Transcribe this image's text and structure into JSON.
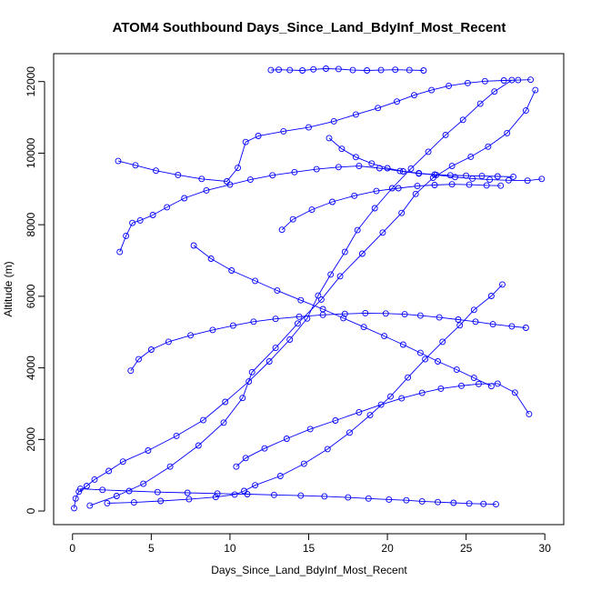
{
  "chart_data": {
    "type": "line",
    "title": "ATOM4 Southbound Days_Since_Land_BdyInf_Most_Recent",
    "xlabel": "Days_Since_Land_BdyInf_Most_Recent",
    "ylabel": "Altitude (m)",
    "xlim": [
      -1.2,
      31.2
    ],
    "ylim": [
      -380,
      12780
    ],
    "x_ticks": [
      0,
      5,
      10,
      15,
      20,
      25,
      30
    ],
    "y_ticks": [
      0,
      2000,
      4000,
      6000,
      8000,
      10000,
      12000
    ],
    "x_tick_labels": [
      "0",
      "5",
      "10",
      "15",
      "20",
      "25",
      "30"
    ],
    "y_tick_labels": [
      "0",
      "2000",
      "4000",
      "6000",
      "8000",
      "10000",
      "12000"
    ],
    "grid": false,
    "legend": "none",
    "series_color": "#0000ff",
    "series": [
      {
        "x": [
          0.1,
          0.2,
          0.4,
          0.9,
          1.4,
          2.3,
          3.2,
          4.8,
          6.6,
          8.3,
          9.7,
          11.2,
          12.5,
          13.8,
          14.9,
          15.6,
          16.4,
          17.3,
          18.1,
          19.2,
          20.3,
          21.5,
          22.6,
          23.7,
          24.8,
          25.9,
          26.8,
          27.9
        ],
        "y": [
          80,
          350,
          540,
          700,
          880,
          1120,
          1380,
          1690,
          2100,
          2540,
          3050,
          3620,
          4180,
          4790,
          5380,
          6020,
          6610,
          7240,
          7850,
          8460,
          9020,
          9570,
          10040,
          10510,
          10930,
          11380,
          11720,
          12040
        ]
      },
      {
        "x": [
          1.1,
          2.8,
          4.5,
          6.2,
          8.0,
          9.6,
          10.8,
          11.4,
          12.9,
          14.3,
          15.8,
          17.0,
          18.4,
          19.7,
          20.9,
          21.8,
          22.9,
          24.1,
          25.3,
          26.4,
          27.6,
          28.8,
          29.4
        ],
        "y": [
          150,
          420,
          760,
          1240,
          1830,
          2470,
          3160,
          3880,
          4560,
          5240,
          5910,
          6560,
          7190,
          7780,
          8330,
          8860,
          9310,
          9640,
          9900,
          10180,
          10560,
          11190,
          11760
        ]
      },
      {
        "x": [
          2.2,
          3.9,
          5.6,
          7.4,
          9.1,
          10.3,
          10.9,
          11.6,
          13.2,
          14.7,
          16.2,
          17.6,
          18.9,
          20.2,
          21.3,
          22.4,
          23.5,
          24.6,
          25.5,
          26.6,
          27.3
        ],
        "y": [
          220,
          240,
          280,
          330,
          390,
          460,
          560,
          720,
          980,
          1320,
          1730,
          2190,
          2680,
          3200,
          3730,
          4240,
          4730,
          5190,
          5620,
          6010,
          6330
        ]
      },
      {
        "x": [
          3.0,
          3.4,
          3.8,
          4.3,
          5.1,
          6.0,
          7.1,
          8.5,
          10.0,
          11.3,
          12.7,
          14.1,
          15.5,
          16.9,
          18.2,
          19.5,
          20.8,
          22.0,
          23.1,
          24.3,
          25.4,
          26.5,
          27.7,
          28.9,
          29.8
        ],
        "y": [
          7240,
          7690,
          8050,
          8120,
          8270,
          8490,
          8740,
          8960,
          9120,
          9260,
          9380,
          9470,
          9550,
          9610,
          9640,
          9580,
          9500,
          9440,
          9390,
          9330,
          9290,
          9260,
          9240,
          9230,
          9280
        ]
      },
      {
        "x": [
          2.9,
          4.0,
          5.3,
          6.7,
          8.2,
          9.8,
          10.5,
          11.0,
          11.8,
          13.4,
          15.0,
          16.6,
          18.0,
          19.4,
          20.6,
          21.7,
          22.8,
          23.9,
          25.1,
          26.2,
          27.4,
          28.3,
          29.1
        ],
        "y": [
          9780,
          9660,
          9510,
          9390,
          9280,
          9210,
          9590,
          10310,
          10480,
          10610,
          10720,
          10890,
          11080,
          11260,
          11440,
          11620,
          11760,
          11880,
          11960,
          12010,
          12030,
          12040,
          12050
        ]
      },
      {
        "x": [
          12.6,
          13.1,
          13.8,
          14.6,
          15.3,
          16.1,
          16.9,
          17.8,
          18.7,
          19.6,
          20.5,
          21.4,
          22.3
        ],
        "y": [
          12320,
          12330,
          12320,
          12310,
          12340,
          12360,
          12350,
          12320,
          12310,
          12320,
          12330,
          12320,
          12310
        ]
      },
      {
        "x": [
          0.5,
          1.9,
          3.6,
          5.4,
          7.3,
          9.2,
          11.1,
          12.8,
          14.5,
          16.0,
          17.5,
          18.8,
          20.1,
          21.2,
          22.2,
          23.2,
          24.2,
          25.2,
          26.1,
          26.9
        ],
        "y": [
          620,
          590,
          560,
          530,
          510,
          490,
          470,
          450,
          430,
          410,
          380,
          350,
          320,
          300,
          270,
          250,
          230,
          210,
          200,
          190
        ]
      },
      {
        "x": [
          3.7,
          4.2,
          5.0,
          6.1,
          7.5,
          8.9,
          10.2,
          11.5,
          12.9,
          14.4,
          15.9,
          17.3,
          18.6,
          19.9,
          21.1,
          22.1,
          23.3,
          24.5,
          25.6,
          26.7,
          27.9,
          28.8
        ],
        "y": [
          3920,
          4240,
          4510,
          4730,
          4910,
          5060,
          5180,
          5290,
          5370,
          5430,
          5480,
          5510,
          5530,
          5520,
          5500,
          5460,
          5410,
          5350,
          5290,
          5220,
          5160,
          5120
        ]
      },
      {
        "x": [
          7.7,
          8.8,
          10.1,
          11.6,
          13.0,
          14.5,
          15.9,
          17.2,
          18.5,
          19.8,
          21.0,
          22.1,
          23.2,
          24.4,
          25.5,
          26.6
        ],
        "y": [
          7420,
          7050,
          6720,
          6430,
          6160,
          5890,
          5640,
          5390,
          5140,
          4890,
          4650,
          4420,
          4180,
          3950,
          3720,
          3490
        ]
      },
      {
        "x": [
          10.4,
          11.0,
          12.2,
          13.6,
          15.1,
          16.7,
          18.2,
          19.6,
          20.9,
          22.2,
          23.4,
          24.7,
          25.8,
          27.0,
          28.1,
          29.0
        ],
        "y": [
          1240,
          1480,
          1750,
          2020,
          2290,
          2530,
          2760,
          2970,
          3150,
          3300,
          3420,
          3500,
          3550,
          3560,
          3310,
          2710
        ]
      },
      {
        "x": [
          13.3,
          14.0,
          15.2,
          16.5,
          17.9,
          19.3,
          20.7,
          21.9,
          23.0,
          24.1,
          25.2,
          26.3,
          27.2
        ],
        "y": [
          7860,
          8150,
          8420,
          8640,
          8810,
          8940,
          9020,
          9080,
          9110,
          9130,
          9120,
          9100,
          9090
        ]
      },
      {
        "x": [
          16.3,
          17.1,
          18.0,
          19.0,
          20.0,
          21.0,
          22.0,
          23.0,
          24.0,
          25.0,
          26.0,
          27.0,
          28.0
        ],
        "y": [
          10420,
          10120,
          9890,
          9710,
          9580,
          9490,
          9430,
          9400,
          9380,
          9370,
          9360,
          9350,
          9340
        ]
      }
    ]
  }
}
